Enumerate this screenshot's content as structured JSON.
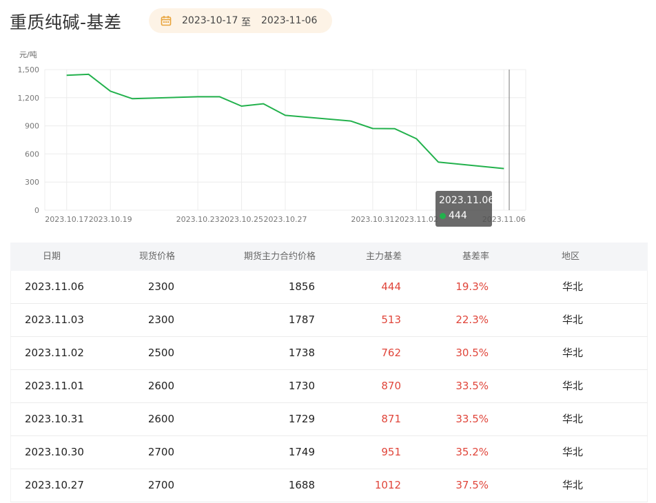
{
  "title": "重质纯碱-基差",
  "date_range": {
    "start": "2023-10-17",
    "separator": "至",
    "end": "2023-11-06",
    "icon": "calendar-icon"
  },
  "chart_data": {
    "type": "line",
    "ylabel": "元/吨",
    "ylim": [
      0,
      1500
    ],
    "yticks": [
      "1,500",
      "1,200",
      "900",
      "600",
      "300",
      "0"
    ],
    "xticks": [
      "2023.10.17",
      "2023.10.19",
      "2023.10.23",
      "2023.10.25",
      "2023.10.27",
      "2023.10.31",
      "2023.11.02",
      "2023.11.06"
    ],
    "x": [
      "2023.10.17",
      "2023.10.18",
      "2023.10.19",
      "2023.10.20",
      "2023.10.23",
      "2023.10.24",
      "2023.10.25",
      "2023.10.26",
      "2023.10.27",
      "2023.10.30",
      "2023.10.31",
      "2023.11.01",
      "2023.11.02",
      "2023.11.03",
      "2023.11.06"
    ],
    "values": [
      1440,
      1450,
      1270,
      1190,
      1210,
      1210,
      1110,
      1135,
      1012,
      951,
      871,
      870,
      762,
      513,
      444
    ],
    "color": "#22b14c",
    "grid": true,
    "tooltip": {
      "date": "2023.11.06",
      "value": "444"
    }
  },
  "table": {
    "headers": {
      "date": "日期",
      "spot": "现货价格",
      "futures": "期货主力合约价格",
      "basis": "主力基差",
      "rate": "基差率",
      "region": "地区"
    },
    "rows": [
      {
        "date": "2023.11.06",
        "spot": "2300",
        "futures": "1856",
        "basis": "444",
        "rate": "19.3%",
        "region": "华北"
      },
      {
        "date": "2023.11.03",
        "spot": "2300",
        "futures": "1787",
        "basis": "513",
        "rate": "22.3%",
        "region": "华北"
      },
      {
        "date": "2023.11.02",
        "spot": "2500",
        "futures": "1738",
        "basis": "762",
        "rate": "30.5%",
        "region": "华北"
      },
      {
        "date": "2023.11.01",
        "spot": "2600",
        "futures": "1730",
        "basis": "870",
        "rate": "33.5%",
        "region": "华北"
      },
      {
        "date": "2023.10.31",
        "spot": "2600",
        "futures": "1729",
        "basis": "871",
        "rate": "33.5%",
        "region": "华北"
      },
      {
        "date": "2023.10.30",
        "spot": "2700",
        "futures": "1749",
        "basis": "951",
        "rate": "35.2%",
        "region": "华北"
      },
      {
        "date": "2023.10.27",
        "spot": "2700",
        "futures": "1688",
        "basis": "1012",
        "rate": "37.5%",
        "region": "华北"
      }
    ]
  }
}
